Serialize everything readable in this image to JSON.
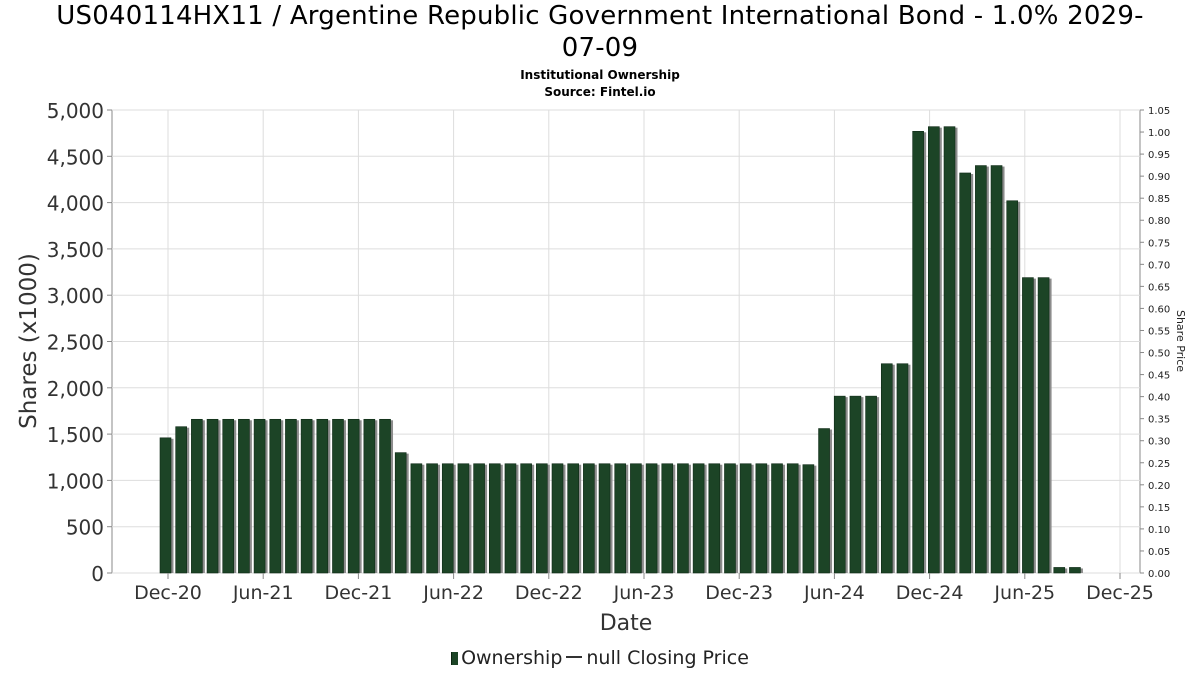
{
  "title_line1": "US040114HX11 / Argentine Republic Government International Bond - 1.0% 2029-",
  "title_line2": "07-09",
  "subtitle_line1": "Institutional Ownership",
  "subtitle_line2": "Source: Fintel.io",
  "legend": {
    "ownership_label": "Ownership",
    "price_label": "null Closing Price"
  },
  "colors": {
    "bar": "#1c4426",
    "bar_shadow": "#8c8c8c",
    "grid": "#dddddd",
    "axis": "#888888"
  },
  "chart_data": {
    "type": "bar",
    "xlabel": "Date",
    "ylabel": "Shares (x1000)",
    "y2label": "Share Price",
    "ylim": [
      0,
      5000
    ],
    "y2lim": [
      0,
      1.05
    ],
    "yticks": [
      "0",
      "500",
      "1,000",
      "1,500",
      "2,000",
      "2,500",
      "3,000",
      "3,500",
      "4,000",
      "4,500",
      "5,000"
    ],
    "y2ticks": [
      "0.00",
      "0.05",
      "0.10",
      "0.15",
      "0.20",
      "0.25",
      "0.30",
      "0.35",
      "0.40",
      "0.45",
      "0.50",
      "0.55",
      "0.60",
      "0.65",
      "0.70",
      "0.75",
      "0.80",
      "0.85",
      "0.90",
      "0.95",
      "1.00",
      "1.05"
    ],
    "xticks": [
      "Dec-20",
      "Jun-21",
      "Dec-21",
      "Jun-22",
      "Dec-22",
      "Jun-23",
      "Dec-23",
      "Jun-24",
      "Dec-24",
      "Jun-25",
      "Dec-25"
    ],
    "grid": true,
    "legend_position": "bottom-center",
    "series": [
      {
        "name": "Ownership",
        "values": [
          1460,
          1580,
          1660,
          1660,
          1660,
          1660,
          1660,
          1660,
          1660,
          1660,
          1660,
          1660,
          1660,
          1660,
          1660,
          1300,
          1180,
          1180,
          1180,
          1180,
          1180,
          1180,
          1180,
          1180,
          1180,
          1180,
          1180,
          1180,
          1180,
          1180,
          1180,
          1180,
          1180,
          1180,
          1180,
          1180,
          1180,
          1180,
          1180,
          1180,
          1180,
          1170,
          1560,
          1910,
          1910,
          1910,
          2260,
          2260,
          4770,
          4820,
          4820,
          4320,
          4400,
          4400,
          4020,
          3190,
          3190,
          60,
          60
        ]
      }
    ]
  }
}
